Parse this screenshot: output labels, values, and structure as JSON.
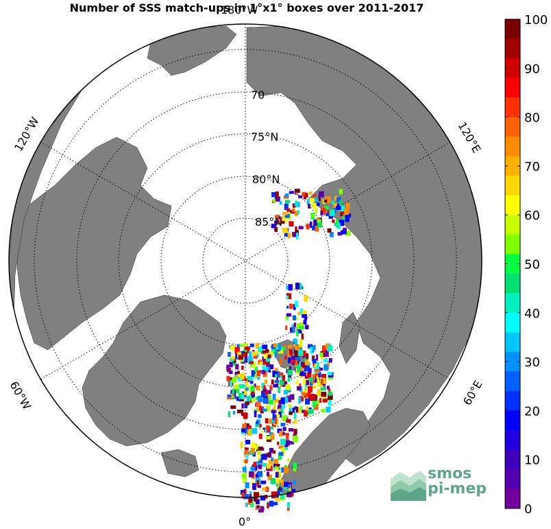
{
  "title": "Number of SSS match-ups in 1°x1° boxes over 2011-2017",
  "latitude_labels": [
    {
      "label": "70",
      "lat": 70
    },
    {
      "label": "75°N",
      "lat": 75
    },
    {
      "label": "80°N",
      "lat": 80
    },
    {
      "label": "85°N",
      "lat": 85
    }
  ],
  "longitude_labels": [
    {
      "label": "180°W",
      "lon": 180
    },
    {
      "label": "120°W",
      "lon": -120
    },
    {
      "label": "120°E",
      "lon": 120
    },
    {
      "label": "60°W",
      "lon": -60
    },
    {
      "label": "60°E",
      "lon": 60
    },
    {
      "label": "0°",
      "lon": 0
    }
  ],
  "colorbar": {
    "min": 0,
    "max": 100,
    "ticks": [
      "100",
      "90",
      "80",
      "70",
      "60",
      "50",
      "40",
      "30",
      "20",
      "10",
      "0"
    ],
    "colors": [
      "#7a0000",
      "#a00000",
      "#d00000",
      "#ff0000",
      "#ff3000",
      "#ff6000",
      "#ff8c00",
      "#ffb000",
      "#ffd700",
      "#ffff00",
      "#c8ff00",
      "#80ff00",
      "#00ff40",
      "#00e070",
      "#00f0c0",
      "#00ffff",
      "#00c8ff",
      "#0090ff",
      "#0060ff",
      "#0030ff",
      "#0000ff",
      "#2000e0",
      "#4000c0",
      "#5500b0",
      "#700099"
    ]
  },
  "colors": {
    "land": "#808080",
    "ocean": "#ffffff",
    "grid": "#000000"
  },
  "logo": {
    "line1": "smos",
    "line2": "pi-mep"
  }
}
